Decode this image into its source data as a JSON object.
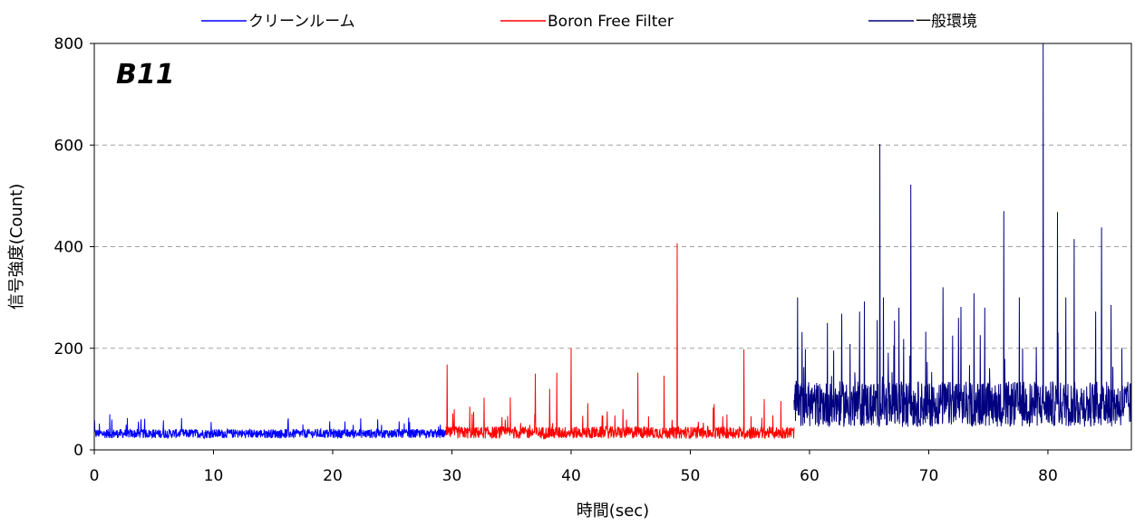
{
  "chart_data": {
    "type": "line",
    "annotation": "B11",
    "xlabel": "時間(sec)",
    "ylabel": "信号強度(Count)",
    "xlim": [
      0,
      87
    ],
    "ylim": [
      0,
      800
    ],
    "x_ticks": [
      "0",
      "10",
      "20",
      "30",
      "40",
      "50",
      "60",
      "70",
      "80"
    ],
    "y_ticks": [
      "0",
      "200",
      "400",
      "600",
      "800"
    ],
    "grid": "horizontal dashed",
    "legend_position": "top",
    "series": [
      {
        "name": "クリーンルーム",
        "color": "#0000ff",
        "x_range": [
          0,
          29.5
        ],
        "baseline": 32,
        "noise": 9,
        "spikes": [
          [
            1.3,
            70
          ],
          [
            5.8,
            58
          ],
          [
            9.8,
            55
          ],
          [
            17.5,
            50
          ],
          [
            26.0,
            52
          ]
        ]
      },
      {
        "name": "Boron Free Filter",
        "color": "#ff0000",
        "x_range": [
          29.5,
          58.7
        ],
        "baseline": 34,
        "noise": 12,
        "spikes": [
          [
            29.6,
            168
          ],
          [
            30.2,
            80
          ],
          [
            31.5,
            85
          ],
          [
            32.7,
            103
          ],
          [
            34.9,
            103
          ],
          [
            37.0,
            150
          ],
          [
            38.2,
            120
          ],
          [
            38.8,
            152
          ],
          [
            40.0,
            200
          ],
          [
            41.4,
            92
          ],
          [
            45.6,
            152
          ],
          [
            47.8,
            146
          ],
          [
            48.9,
            407
          ],
          [
            52.0,
            90
          ],
          [
            54.5,
            198
          ],
          [
            56.2,
            100
          ],
          [
            57.6,
            96
          ]
        ]
      },
      {
        "name": "一般環境",
        "color": "#000080",
        "x_range": [
          58.7,
          87
        ],
        "baseline": 90,
        "noise": 45,
        "spikes": [
          [
            59.0,
            300
          ],
          [
            61.5,
            250
          ],
          [
            62.7,
            268
          ],
          [
            64.2,
            272
          ],
          [
            64.6,
            292
          ],
          [
            65.9,
            602
          ],
          [
            66.2,
            300
          ],
          [
            67.5,
            280
          ],
          [
            68.5,
            522
          ],
          [
            71.2,
            320
          ],
          [
            72.5,
            260
          ],
          [
            73.8,
            308
          ],
          [
            74.7,
            280
          ],
          [
            76.3,
            470
          ],
          [
            77.6,
            300
          ],
          [
            79.6,
            800
          ],
          [
            80.8,
            468
          ],
          [
            81.5,
            300
          ],
          [
            82.2,
            415
          ],
          [
            84.0,
            272
          ],
          [
            84.5,
            438
          ],
          [
            85.3,
            285
          ],
          [
            86.2,
            200
          ]
        ]
      }
    ]
  }
}
